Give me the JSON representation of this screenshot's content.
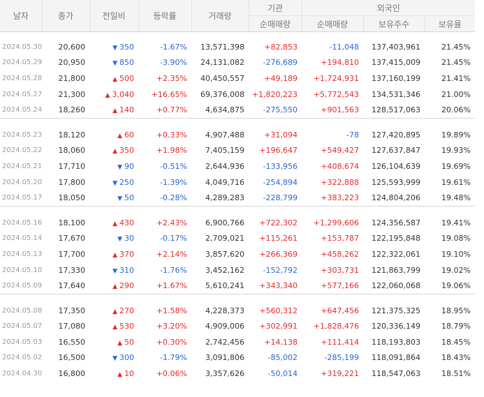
{
  "header": {
    "date": "날자",
    "close": "종가",
    "change": "전일비",
    "rate": "등락률",
    "volume": "거래량",
    "institution": "기관",
    "foreign": "외국인",
    "inst_net": "순매매량",
    "foreign_net": "순매매량",
    "holdings": "보유주수",
    "holding_ratio": "보유율"
  },
  "groups": [
    [
      {
        "date": "2024.05.30",
        "close": "20,600",
        "dir": "down",
        "change": "350",
        "rate": "-1.67%",
        "volume": "13,571,398",
        "inst": "+82,853",
        "foreign": "-11,048",
        "holdings": "137,403,961",
        "ratio": "21.45%"
      },
      {
        "date": "2024.05.29",
        "close": "20,950",
        "dir": "down",
        "change": "850",
        "rate": "-3.90%",
        "volume": "24,131,082",
        "inst": "-276,689",
        "foreign": "+194,810",
        "holdings": "137,415,009",
        "ratio": "21.45%"
      },
      {
        "date": "2024.05.28",
        "close": "21,800",
        "dir": "up",
        "change": "500",
        "rate": "+2.35%",
        "volume": "40,450,557",
        "inst": "+49,189",
        "foreign": "+1,724,931",
        "holdings": "137,160,199",
        "ratio": "21.41%"
      },
      {
        "date": "2024.05.27",
        "close": "21,300",
        "dir": "up",
        "change": "3,040",
        "rate": "+16.65%",
        "volume": "69,376,008",
        "inst": "+1,820,223",
        "foreign": "+5,772,543",
        "holdings": "134,531,346",
        "ratio": "21.00%"
      },
      {
        "date": "2024.05.24",
        "close": "18,260",
        "dir": "up",
        "change": "140",
        "rate": "+0.77%",
        "volume": "4,634,875",
        "inst": "-275,550",
        "foreign": "+901,563",
        "holdings": "128,517,063",
        "ratio": "20.06%"
      }
    ],
    [
      {
        "date": "2024.05.23",
        "close": "18,120",
        "dir": "up",
        "change": "60",
        "rate": "+0.33%",
        "volume": "4,907,488",
        "inst": "+31,094",
        "foreign": "-78",
        "holdings": "127,420,895",
        "ratio": "19.89%"
      },
      {
        "date": "2024.05.22",
        "close": "18,060",
        "dir": "up",
        "change": "350",
        "rate": "+1.98%",
        "volume": "7,405,159",
        "inst": "+196,647",
        "foreign": "+549,427",
        "holdings": "127,637,847",
        "ratio": "19.93%"
      },
      {
        "date": "2024.05.21",
        "close": "17,710",
        "dir": "down",
        "change": "90",
        "rate": "-0.51%",
        "volume": "2,644,936",
        "inst": "-133,956",
        "foreign": "+408,674",
        "holdings": "126,104,639",
        "ratio": "19.69%"
      },
      {
        "date": "2024.05.20",
        "close": "17,800",
        "dir": "down",
        "change": "250",
        "rate": "-1.39%",
        "volume": "4,049,716",
        "inst": "-254,894",
        "foreign": "+322,888",
        "holdings": "125,593,999",
        "ratio": "19.61%"
      },
      {
        "date": "2024.05.17",
        "close": "18,050",
        "dir": "down",
        "change": "50",
        "rate": "-0.28%",
        "volume": "4,289,283",
        "inst": "-228,799",
        "foreign": "+383,223",
        "holdings": "124,804,206",
        "ratio": "19.48%"
      }
    ],
    [
      {
        "date": "2024.05.16",
        "close": "18,100",
        "dir": "up",
        "change": "430",
        "rate": "+2.43%",
        "volume": "6,900,766",
        "inst": "+722,302",
        "foreign": "+1,299,606",
        "holdings": "124,356,587",
        "ratio": "19.41%"
      },
      {
        "date": "2024.05.14",
        "close": "17,670",
        "dir": "down",
        "change": "30",
        "rate": "-0.17%",
        "volume": "2,709,021",
        "inst": "+115,261",
        "foreign": "+153,787",
        "holdings": "122,195,848",
        "ratio": "19.08%"
      },
      {
        "date": "2024.05.13",
        "close": "17,700",
        "dir": "up",
        "change": "370",
        "rate": "+2.14%",
        "volume": "3,857,620",
        "inst": "+266,369",
        "foreign": "+458,262",
        "holdings": "122,322,061",
        "ratio": "19.10%"
      },
      {
        "date": "2024.05.10",
        "close": "17,330",
        "dir": "down",
        "change": "310",
        "rate": "-1.76%",
        "volume": "3,452,162",
        "inst": "-152,792",
        "foreign": "+303,731",
        "holdings": "121,863,799",
        "ratio": "19.02%"
      },
      {
        "date": "2024.05.09",
        "close": "17,640",
        "dir": "up",
        "change": "290",
        "rate": "+1.67%",
        "volume": "5,610,241",
        "inst": "+343,340",
        "foreign": "+577,166",
        "holdings": "122,060,068",
        "ratio": "19.06%"
      }
    ],
    [
      {
        "date": "2024.05.08",
        "close": "17,350",
        "dir": "up",
        "change": "270",
        "rate": "+1.58%",
        "volume": "4,228,373",
        "inst": "+560,312",
        "foreign": "+647,456",
        "holdings": "121,375,325",
        "ratio": "18.95%"
      },
      {
        "date": "2024.05.07",
        "close": "17,080",
        "dir": "up",
        "change": "530",
        "rate": "+3.20%",
        "volume": "4,909,006",
        "inst": "+302,991",
        "foreign": "+1,828,476",
        "holdings": "120,336,149",
        "ratio": "18.79%"
      },
      {
        "date": "2024.05.03",
        "close": "16,550",
        "dir": "up",
        "change": "50",
        "rate": "+0.30%",
        "volume": "2,742,456",
        "inst": "+14,138",
        "foreign": "+111,414",
        "holdings": "118,193,803",
        "ratio": "18.45%"
      },
      {
        "date": "2024.05.02",
        "close": "16,500",
        "dir": "down",
        "change": "300",
        "rate": "-1.79%",
        "volume": "3,091,806",
        "inst": "-85,002",
        "foreign": "-285,199",
        "holdings": "118,091,864",
        "ratio": "18.43%"
      },
      {
        "date": "2024.04.30",
        "close": "16,800",
        "dir": "up",
        "change": "10",
        "rate": "+0.06%",
        "volume": "3,357,626",
        "inst": "-50,014",
        "foreign": "+319,221",
        "holdings": "118,547,063",
        "ratio": "18.51%"
      }
    ]
  ],
  "icons": {
    "up": "triangle-up-icon",
    "down": "triangle-down-icon"
  },
  "colors": {
    "up": "#e52a2a",
    "down": "#2a64d6",
    "header_bg": "#f4f4f4"
  }
}
